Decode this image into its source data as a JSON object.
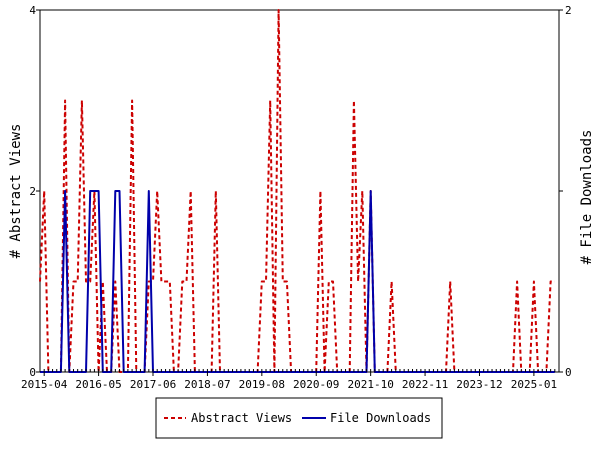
{
  "chart_data": {
    "type": "line",
    "xlabel": "",
    "ylabel_left": "# Abstract Views",
    "ylabel_right": "# File Downloads",
    "x_tick_labels": [
      "2015-04",
      "2016-05",
      "2017-06",
      "2018-07",
      "2019-08",
      "2020-09",
      "2021-10",
      "2022-11",
      "2023-12",
      "2025-01"
    ],
    "x_tick_dates": [
      "2015-04",
      "2016-05",
      "2017-06",
      "2018-07",
      "2019-08",
      "2020-09",
      "2021-10",
      "2022-11",
      "2023-12",
      "2025-01"
    ],
    "xlim": [
      "2015-03",
      "2025-07"
    ],
    "ylim_left": [
      0,
      4
    ],
    "ylim_right": [
      0,
      2
    ],
    "y_ticks_left": [
      "0",
      "2",
      "4"
    ],
    "y_ticks_right": [
      "0",
      "1",
      "2"
    ],
    "grid": false,
    "legend_position": "bottom",
    "series": [
      {
        "name": "Abstract Views",
        "axis": "left",
        "color": "#cc0000",
        "dash": true,
        "points": [
          [
            "2015-03",
            1
          ],
          [
            "2015-04",
            2
          ],
          [
            "2015-05",
            0
          ],
          [
            "2015-06",
            0
          ],
          [
            "2015-07",
            0
          ],
          [
            "2015-08",
            0
          ],
          [
            "2015-09",
            3
          ],
          [
            "2015-10",
            0
          ],
          [
            "2015-11",
            1
          ],
          [
            "2015-12",
            1
          ],
          [
            "2016-01",
            3
          ],
          [
            "2016-02",
            1
          ],
          [
            "2016-03",
            1
          ],
          [
            "2016-04",
            2
          ],
          [
            "2016-05",
            0
          ],
          [
            "2016-06",
            1
          ],
          [
            "2016-07",
            0
          ],
          [
            "2016-08",
            0
          ],
          [
            "2016-09",
            1
          ],
          [
            "2016-10",
            0
          ],
          [
            "2016-11",
            0
          ],
          [
            "2016-12",
            0
          ],
          [
            "2017-01",
            3
          ],
          [
            "2017-02",
            0
          ],
          [
            "2017-03",
            0
          ],
          [
            "2017-04",
            0
          ],
          [
            "2017-05",
            1
          ],
          [
            "2017-06",
            1
          ],
          [
            "2017-07",
            2
          ],
          [
            "2017-08",
            1
          ],
          [
            "2017-09",
            1
          ],
          [
            "2017-10",
            1
          ],
          [
            "2017-11",
            0
          ],
          [
            "2017-12",
            0
          ],
          [
            "2018-01",
            1
          ],
          [
            "2018-02",
            1
          ],
          [
            "2018-03",
            2
          ],
          [
            "2018-04",
            0
          ],
          [
            "2018-05",
            0
          ],
          [
            "2018-06",
            0
          ],
          [
            "2018-07",
            0
          ],
          [
            "2018-08",
            0
          ],
          [
            "2018-09",
            2
          ],
          [
            "2018-10",
            0
          ],
          [
            "2018-11",
            0
          ],
          [
            "2018-12",
            0
          ],
          [
            "2019-01",
            0
          ],
          [
            "2019-02",
            0
          ],
          [
            "2019-03",
            0
          ],
          [
            "2019-04",
            0
          ],
          [
            "2019-05",
            0
          ],
          [
            "2019-06",
            0
          ],
          [
            "2019-07",
            0
          ],
          [
            "2019-08",
            1
          ],
          [
            "2019-09",
            1
          ],
          [
            "2019-10",
            3
          ],
          [
            "2019-11",
            0
          ],
          [
            "2019-12",
            4
          ],
          [
            "2020-01",
            1
          ],
          [
            "2020-02",
            1
          ],
          [
            "2020-03",
            0
          ],
          [
            "2020-04",
            0
          ],
          [
            "2020-05",
            0
          ],
          [
            "2020-06",
            0
          ],
          [
            "2020-07",
            0
          ],
          [
            "2020-08",
            0
          ],
          [
            "2020-09",
            0
          ],
          [
            "2020-10",
            2
          ],
          [
            "2020-11",
            0
          ],
          [
            "2020-12",
            1
          ],
          [
            "2021-01",
            1
          ],
          [
            "2021-02",
            0
          ],
          [
            "2021-03",
            0
          ],
          [
            "2021-04",
            0
          ],
          [
            "2021-05",
            0
          ],
          [
            "2021-06",
            3
          ],
          [
            "2021-07",
            1
          ],
          [
            "2021-08",
            2
          ],
          [
            "2021-09",
            0
          ],
          [
            "2021-10",
            2
          ],
          [
            "2021-11",
            0
          ],
          [
            "2021-12",
            0
          ],
          [
            "2022-01",
            0
          ],
          [
            "2022-02",
            0
          ],
          [
            "2022-03",
            1
          ],
          [
            "2022-04",
            0
          ],
          [
            "2022-05",
            0
          ],
          [
            "2022-06",
            0
          ],
          [
            "2022-07",
            0
          ],
          [
            "2022-08",
            0
          ],
          [
            "2022-09",
            0
          ],
          [
            "2022-10",
            0
          ],
          [
            "2022-11",
            0
          ],
          [
            "2022-12",
            0
          ],
          [
            "2023-01",
            0
          ],
          [
            "2023-02",
            0
          ],
          [
            "2023-03",
            0
          ],
          [
            "2023-04",
            0
          ],
          [
            "2023-05",
            1
          ],
          [
            "2023-06",
            0
          ],
          [
            "2023-07",
            0
          ],
          [
            "2023-08",
            0
          ],
          [
            "2023-09",
            0
          ],
          [
            "2023-10",
            0
          ],
          [
            "2023-11",
            0
          ],
          [
            "2023-12",
            0
          ],
          [
            "2024-01",
            0
          ],
          [
            "2024-02",
            0
          ],
          [
            "2024-03",
            0
          ],
          [
            "2024-04",
            0
          ],
          [
            "2024-05",
            0
          ],
          [
            "2024-06",
            0
          ],
          [
            "2024-07",
            0
          ],
          [
            "2024-08",
            0
          ],
          [
            "2024-09",
            1
          ],
          [
            "2024-10",
            0
          ],
          [
            "2024-11",
            0
          ],
          [
            "2024-12",
            0
          ],
          [
            "2025-01",
            1
          ],
          [
            "2025-02",
            0
          ],
          [
            "2025-03",
            0
          ],
          [
            "2025-04",
            0
          ],
          [
            "2025-05",
            1
          ],
          [
            "2025-06",
            1
          ]
        ]
      },
      {
        "name": "File Downloads",
        "axis": "right",
        "color": "#0000aa",
        "dash": false,
        "points": [
          [
            "2015-03",
            0
          ],
          [
            "2015-04",
            0
          ],
          [
            "2015-05",
            0
          ],
          [
            "2015-06",
            0
          ],
          [
            "2015-07",
            0
          ],
          [
            "2015-08",
            0
          ],
          [
            "2015-09",
            1
          ],
          [
            "2015-10",
            0
          ],
          [
            "2015-11",
            0
          ],
          [
            "2015-12",
            0
          ],
          [
            "2016-01",
            0
          ],
          [
            "2016-02",
            0
          ],
          [
            "2016-03",
            1
          ],
          [
            "2016-04",
            1
          ],
          [
            "2016-05",
            1
          ],
          [
            "2016-06",
            0
          ],
          [
            "2016-07",
            0
          ],
          [
            "2016-08",
            0
          ],
          [
            "2016-09",
            1
          ],
          [
            "2016-10",
            1
          ],
          [
            "2016-11",
            0
          ],
          [
            "2016-12",
            0
          ],
          [
            "2017-01",
            0
          ],
          [
            "2017-02",
            0
          ],
          [
            "2017-03",
            0
          ],
          [
            "2017-04",
            0
          ],
          [
            "2017-05",
            1
          ],
          [
            "2017-06",
            0
          ],
          [
            "2017-07",
            0
          ],
          [
            "2017-08",
            0
          ],
          [
            "2017-09",
            0
          ],
          [
            "2017-10",
            0
          ],
          [
            "2017-11",
            0
          ],
          [
            "2017-12",
            0
          ],
          [
            "2018-01",
            0
          ],
          [
            "2018-02",
            0
          ],
          [
            "2018-03",
            0
          ],
          [
            "2018-04",
            0
          ],
          [
            "2018-05",
            0
          ],
          [
            "2018-06",
            0
          ],
          [
            "2018-07",
            0
          ],
          [
            "2018-08",
            0
          ],
          [
            "2018-09",
            0
          ],
          [
            "2018-10",
            0
          ],
          [
            "2018-11",
            0
          ],
          [
            "2018-12",
            0
          ],
          [
            "2019-01",
            0
          ],
          [
            "2019-02",
            0
          ],
          [
            "2019-03",
            0
          ],
          [
            "2019-04",
            0
          ],
          [
            "2019-05",
            0
          ],
          [
            "2019-06",
            0
          ],
          [
            "2019-07",
            0
          ],
          [
            "2019-08",
            0
          ],
          [
            "2019-09",
            0
          ],
          [
            "2019-10",
            0
          ],
          [
            "2019-11",
            0
          ],
          [
            "2019-12",
            0
          ],
          [
            "2020-01",
            0
          ],
          [
            "2020-02",
            0
          ],
          [
            "2020-03",
            0
          ],
          [
            "2020-04",
            0
          ],
          [
            "2020-05",
            0
          ],
          [
            "2020-06",
            0
          ],
          [
            "2020-07",
            0
          ],
          [
            "2020-08",
            0
          ],
          [
            "2020-09",
            0
          ],
          [
            "2020-10",
            0
          ],
          [
            "2020-11",
            0
          ],
          [
            "2020-12",
            0
          ],
          [
            "2021-01",
            0
          ],
          [
            "2021-02",
            0
          ],
          [
            "2021-03",
            0
          ],
          [
            "2021-04",
            0
          ],
          [
            "2021-05",
            0
          ],
          [
            "2021-06",
            0
          ],
          [
            "2021-07",
            0
          ],
          [
            "2021-08",
            0
          ],
          [
            "2021-09",
            0
          ],
          [
            "2021-10",
            1
          ],
          [
            "2021-11",
            0
          ],
          [
            "2021-12",
            0
          ],
          [
            "2022-01",
            0
          ],
          [
            "2022-02",
            0
          ],
          [
            "2022-03",
            0
          ],
          [
            "2022-04",
            0
          ],
          [
            "2022-05",
            0
          ],
          [
            "2022-06",
            0
          ],
          [
            "2022-07",
            0
          ],
          [
            "2022-08",
            0
          ],
          [
            "2022-09",
            0
          ],
          [
            "2022-10",
            0
          ],
          [
            "2022-11",
            0
          ],
          [
            "2022-12",
            0
          ],
          [
            "2023-01",
            0
          ],
          [
            "2023-02",
            0
          ],
          [
            "2023-03",
            0
          ],
          [
            "2023-04",
            0
          ],
          [
            "2023-05",
            0
          ],
          [
            "2023-06",
            0
          ],
          [
            "2023-07",
            0
          ],
          [
            "2023-08",
            0
          ],
          [
            "2023-09",
            0
          ],
          [
            "2023-10",
            0
          ],
          [
            "2023-11",
            0
          ],
          [
            "2023-12",
            0
          ],
          [
            "2024-01",
            0
          ],
          [
            "2024-02",
            0
          ],
          [
            "2024-03",
            0
          ],
          [
            "2024-04",
            0
          ],
          [
            "2024-05",
            0
          ],
          [
            "2024-06",
            0
          ],
          [
            "2024-07",
            0
          ],
          [
            "2024-08",
            0
          ],
          [
            "2024-09",
            0
          ],
          [
            "2024-10",
            0
          ],
          [
            "2024-11",
            0
          ],
          [
            "2024-12",
            0
          ],
          [
            "2025-01",
            0
          ],
          [
            "2025-02",
            0
          ],
          [
            "2025-03",
            0
          ],
          [
            "2025-04",
            0
          ],
          [
            "2025-05",
            0
          ],
          [
            "2025-06",
            0
          ]
        ]
      }
    ]
  }
}
